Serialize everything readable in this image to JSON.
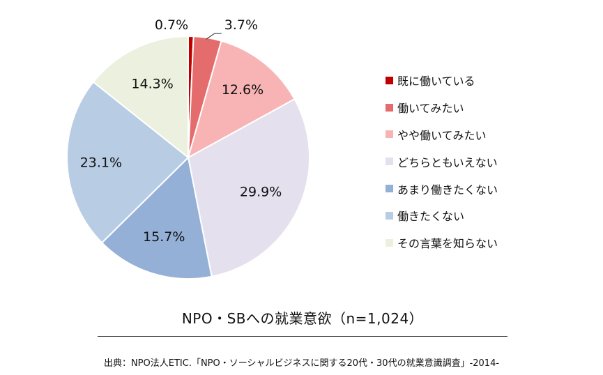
{
  "chart_data": {
    "type": "pie",
    "title": "NPO・SBへの就業意欲（n=1,024）",
    "categories": [
      "既に働いている",
      "働いてみたい",
      "やや働いてみたい",
      "どちらともいえない",
      "あまり働きたくない",
      "働きたくない",
      "その言葉を知らない"
    ],
    "values": [
      0.7,
      3.7,
      12.6,
      29.9,
      15.7,
      23.1,
      14.3
    ],
    "labels": [
      "0.7%",
      "3.7%",
      "12.6%",
      "29.9%",
      "15.7%",
      "23.1%",
      "14.3%"
    ],
    "unit": "%",
    "legend_position": "right",
    "colors": [
      "#c00000",
      "#e46c6c",
      "#f8b4b4",
      "#e4e0ee",
      "#95b0d6",
      "#b8cce4",
      "#ebf1de"
    ],
    "start_angle": "12 o'clock",
    "direction": "clockwise"
  },
  "source": "出典：NPO法人ETIC.「NPO・ソーシャルビジネスに関する20代・30代の就業意識調査」-2014-"
}
